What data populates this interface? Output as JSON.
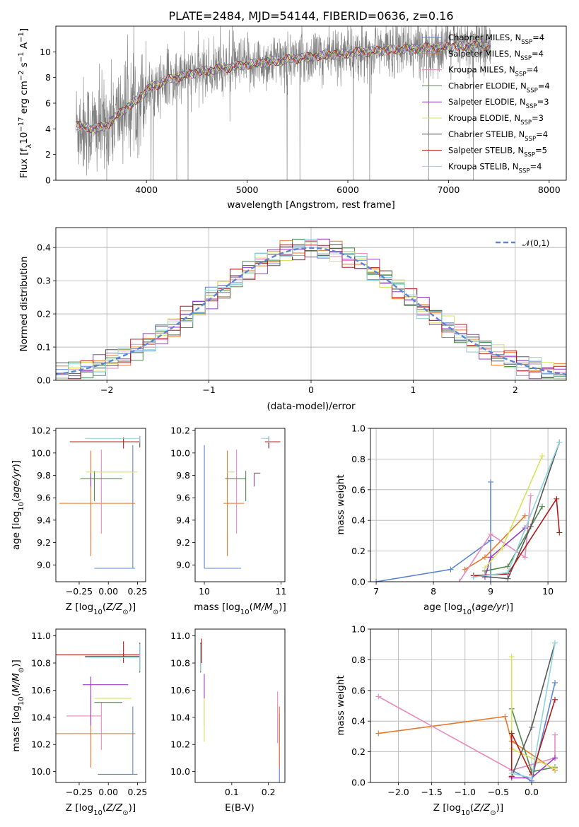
{
  "title": "PLATE=2484, MJD=54144, FIBERID=0636, z=0.16",
  "colors": {
    "ChabrierMILES": "#5b84d6",
    "SalpeterMILES": "#e7782a",
    "KroupaMILES": "#e98abf",
    "ChabrierELODIE": "#4f8a4f",
    "SalpeterELODIE": "#9b3bc4",
    "KroupaELODIE": "#d6e458",
    "ChabrierSTELIB": "#575757",
    "SalpeterSTELIB": "#b31b1b",
    "KroupaSTELIB": "#8fd6dc",
    "data": "#808080"
  },
  "chart_data": [
    {
      "id": "spectrum",
      "type": "line",
      "xlabel": "wavelength [Angstrom, rest frame]",
      "ylabel": "Flux [f_λ10^-17 erg cm^-2 s^-1 A^-1]",
      "xlim": [
        3100,
        8170
      ],
      "ylim": [
        0,
        12
      ],
      "xticks": [
        4000,
        5000,
        6000,
        7000,
        8000
      ],
      "yticks": [
        0,
        2,
        4,
        6,
        8,
        10
      ],
      "grid": false,
      "legend_position": "right",
      "legend": [
        {
          "key": "ChabrierMILES",
          "label": "Chabrier MILES, N",
          "sub": "SSP",
          "suffix": "=4"
        },
        {
          "key": "SalpeterMILES",
          "label": "Salpeter MILES, N",
          "sub": "SSP",
          "suffix": "=4"
        },
        {
          "key": "KroupaMILES",
          "label": "Kroupa MILES, N",
          "sub": "SSP",
          "suffix": "=4"
        },
        {
          "key": "ChabrierELODIE",
          "label": "Chabrier ELODIE, N",
          "sub": "SSP",
          "suffix": "=4"
        },
        {
          "key": "SalpeterELODIE",
          "label": "Salpeter ELODIE, N",
          "sub": "SSP",
          "suffix": "=3"
        },
        {
          "key": "KroupaELODIE",
          "label": "Kroupa ELODIE, N",
          "sub": "SSP",
          "suffix": "=3"
        },
        {
          "key": "ChabrierSTELIB",
          "label": "Chabrier STELIB, N",
          "sub": "SSP",
          "suffix": "=4"
        },
        {
          "key": "SalpeterSTELIB",
          "label": "Salpeter STELIB, N",
          "sub": "SSP",
          "suffix": "=5"
        },
        {
          "key": "KroupaSTELIB",
          "label": "Kroupa STELIB, N",
          "sub": "SSP",
          "suffix": "=4"
        }
      ],
      "model_trend": {
        "x": [
          3300,
          3500,
          3600,
          3700,
          3800,
          3900,
          4000,
          4200,
          4500,
          5000,
          5500,
          6000,
          6500,
          7000,
          7400
        ],
        "y": [
          4.3,
          4.0,
          4.2,
          5.0,
          5.6,
          6.2,
          7.0,
          7.8,
          8.4,
          9.0,
          9.5,
          9.9,
          10.2,
          10.4,
          10.5
        ]
      },
      "data_range": [
        3300,
        7420
      ]
    },
    {
      "id": "residual-hist",
      "type": "line",
      "xlabel": "(data-model)/error",
      "ylabel": "Normed distribution",
      "xlim": [
        -2.5,
        2.5
      ],
      "ylim": [
        0,
        0.46
      ],
      "xticks": [
        -2,
        -1,
        0,
        1,
        2
      ],
      "yticks": [
        0.0,
        0.1,
        0.2,
        0.3,
        0.4
      ],
      "grid": true,
      "legend_position": "top-right",
      "reference_curve": {
        "name": "𝒩(0,1)",
        "mean": 0,
        "sigma": 1
      },
      "bins": 41
    },
    {
      "id": "age-vs-Z",
      "type": "scatter",
      "xlabel": "Z [log10(Z/Z⊙)]",
      "ylabel": "age [log10(age/yr)]",
      "xlim": [
        -0.45,
        0.32
      ],
      "ylim": [
        8.85,
        10.22
      ],
      "xticks": [
        -0.25,
        0.0,
        0.25
      ],
      "yticks": [
        9.0,
        9.2,
        9.4,
        9.6,
        9.8,
        10.0,
        10.2
      ],
      "grid": false,
      "points": [
        {
          "key": "ChabrierMILES",
          "x": 0.21,
          "y": 8.97,
          "xerr": [
            0.33,
            0.02
          ],
          "yerr": [
            0.0,
            1.1
          ]
        },
        {
          "key": "SalpeterMILES",
          "x": -0.15,
          "y": 9.55,
          "xerr": [
            0.27,
            0.38
          ],
          "yerr": [
            0.47,
            0.47
          ]
        },
        {
          "key": "KroupaMILES",
          "x": -0.06,
          "y": 9.58,
          "xerr": [
            0.0,
            0.0
          ],
          "yerr": [
            0.3,
            0.45
          ]
        },
        {
          "key": "ChabrierELODIE",
          "x": -0.12,
          "y": 9.77,
          "xerr": [
            0.12,
            0.24
          ],
          "yerr": [
            0.2,
            0.07
          ]
        },
        {
          "key": "SalpeterELODIE",
          "x": -0.15,
          "y": 9.82,
          "xerr": [
            0.0,
            0.0
          ],
          "yerr": [
            0.12,
            0.0
          ]
        },
        {
          "key": "KroupaELODIE",
          "x": -0.15,
          "y": 9.83,
          "xerr": [
            0.04,
            0.4
          ],
          "yerr": [
            0.0,
            0.0
          ]
        },
        {
          "key": "ChabrierSTELIB",
          "x": 0.27,
          "y": 10.1,
          "xerr": [
            0.0,
            0.0
          ],
          "yerr": [
            0.05,
            0.05
          ]
        },
        {
          "key": "SalpeterSTELIB",
          "x": 0.13,
          "y": 10.1,
          "xerr": [
            0.46,
            0.14
          ],
          "yerr": [
            0.06,
            0.04
          ]
        },
        {
          "key": "KroupaSTELIB",
          "x": 0.27,
          "y": 10.13,
          "xerr": [
            0.47,
            0.0
          ],
          "yerr": [
            0.04,
            0.02
          ]
        }
      ]
    },
    {
      "id": "age-vs-mass",
      "type": "scatter",
      "xlabel": "mass [log10(M/M⊙)]",
      "ylabel": "",
      "xlim": [
        9.88,
        11.05
      ],
      "ylim": [
        8.85,
        10.22
      ],
      "xticks": [
        10,
        11
      ],
      "yticks": [
        9.0,
        9.2,
        9.4,
        9.6,
        9.8,
        10.0,
        10.2
      ],
      "grid": false,
      "points": [
        {
          "key": "ChabrierMILES",
          "x": 10.0,
          "y": 8.97,
          "xerr": [
            0.0,
            0.48
          ],
          "yerr": [
            0.0,
            1.1
          ]
        },
        {
          "key": "SalpeterMILES",
          "x": 10.3,
          "y": 9.55,
          "xerr": [
            0.05,
            0.22
          ],
          "yerr": [
            0.47,
            0.47
          ]
        },
        {
          "key": "KroupaMILES",
          "x": 10.42,
          "y": 9.58,
          "xerr": [
            0.0,
            0.0
          ],
          "yerr": [
            0.3,
            0.45
          ]
        },
        {
          "key": "ChabrierELODIE",
          "x": 10.54,
          "y": 9.77,
          "xerr": [
            0.27,
            0.0
          ],
          "yerr": [
            0.2,
            0.07
          ]
        },
        {
          "key": "SalpeterELODIE",
          "x": 10.65,
          "y": 9.82,
          "xerr": [
            0.0,
            0.08
          ],
          "yerr": [
            0.12,
            0.0
          ]
        },
        {
          "key": "KroupaELODIE",
          "x": 10.4,
          "y": 9.83,
          "xerr": [
            0.1,
            0.0
          ],
          "yerr": [
            0.0,
            0.0
          ]
        },
        {
          "key": "ChabrierSTELIB",
          "x": 10.84,
          "y": 10.1,
          "xerr": [
            0.0,
            0.0
          ],
          "yerr": [
            0.05,
            0.05
          ]
        },
        {
          "key": "SalpeterSTELIB",
          "x": 10.84,
          "y": 10.1,
          "xerr": [
            0.05,
            0.15
          ],
          "yerr": [
            0.06,
            0.04
          ]
        },
        {
          "key": "KroupaSTELIB",
          "x": 10.84,
          "y": 10.13,
          "xerr": [
            0.1,
            0.0
          ],
          "yerr": [
            0.04,
            0.02
          ]
        }
      ]
    },
    {
      "id": "massweight-vs-age",
      "type": "line",
      "xlabel": "age [log10(age/yr)]",
      "ylabel": "mass weight",
      "xlim": [
        6.9,
        10.32
      ],
      "ylim": [
        0,
        1
      ],
      "xticks": [
        7,
        8,
        9,
        10
      ],
      "yticks": [
        0.0,
        0.2,
        0.4,
        0.6,
        0.8,
        1.0
      ],
      "grid": true,
      "series": [
        {
          "key": "ChabrierMILES",
          "x": [
            7.0,
            8.3,
            9.0,
            9.0,
            9.0
          ],
          "y": [
            0.0,
            0.08,
            0.27,
            0.65,
            0.0
          ]
        },
        {
          "key": "SalpeterMILES",
          "x": [
            8.55,
            8.9,
            9.6
          ],
          "y": [
            0.08,
            0.16,
            0.43
          ]
        },
        {
          "key": "KroupaMILES",
          "x": [
            8.45,
            9.0,
            9.6,
            9.7
          ],
          "y": [
            0.0,
            0.31,
            0.16,
            0.56
          ]
        },
        {
          "key": "ChabrierELODIE",
          "x": [
            8.9,
            9.3,
            9.9
          ],
          "y": [
            0.07,
            0.1,
            0.49
          ]
        },
        {
          "key": "SalpeterELODIE",
          "x": [
            8.9,
            9.0,
            9.6
          ],
          "y": [
            0.03,
            0.16,
            0.35
          ]
        },
        {
          "key": "KroupaELODIE",
          "x": [
            8.9,
            9.2,
            9.9
          ],
          "y": [
            0.09,
            0.22,
            0.82
          ]
        },
        {
          "key": "ChabrierSTELIB",
          "x": [
            8.7,
            9.3,
            9.7,
            10.2
          ],
          "y": [
            0.04,
            0.02,
            0.36,
            0.91
          ]
        },
        {
          "key": "SalpeterSTELIB",
          "x": [
            8.7,
            9.3,
            10.15,
            10.2
          ],
          "y": [
            0.04,
            0.05,
            0.54,
            0.32
          ]
        },
        {
          "key": "KroupaSTELIB",
          "x": [
            8.7,
            9.3,
            10.2
          ],
          "y": [
            0.03,
            0.06,
            0.91
          ]
        }
      ]
    },
    {
      "id": "mass-vs-Z",
      "type": "scatter",
      "xlabel": "Z [log10(Z/Z⊙)]",
      "ylabel": "mass [log10(M/M⊙)]",
      "xlim": [
        -0.45,
        0.32
      ],
      "ylim": [
        9.92,
        11.05
      ],
      "xticks": [
        -0.25,
        0.0,
        0.25
      ],
      "yticks": [
        10.0,
        10.2,
        10.4,
        10.6,
        10.8,
        11.0
      ],
      "grid": false,
      "points": [
        {
          "key": "ChabrierMILES",
          "x": 0.21,
          "y": 9.98,
          "xerr": [
            0.3,
            0.04
          ],
          "yerr": [
            0.0,
            0.5
          ]
        },
        {
          "key": "SalpeterMILES",
          "x": -0.15,
          "y": 10.28,
          "xerr": [
            0.3,
            0.38
          ],
          "yerr": [
            0.25,
            0.28
          ]
        },
        {
          "key": "KroupaMILES",
          "x": -0.06,
          "y": 10.41,
          "xerr": [
            0.3,
            0.0
          ],
          "yerr": [
            0.25,
            0.1
          ]
        },
        {
          "key": "ChabrierELODIE",
          "x": -0.12,
          "y": 10.51,
          "xerr": [
            0.0,
            0.24
          ],
          "yerr": [
            0.0,
            0.0
          ]
        },
        {
          "key": "SalpeterELODIE",
          "x": -0.15,
          "y": 10.64,
          "xerr": [
            0.07,
            0.32
          ],
          "yerr": [
            0.3,
            0.06
          ]
        },
        {
          "key": "KroupaELODIE",
          "x": -0.12,
          "y": 10.54,
          "xerr": [
            0.0,
            0.32
          ],
          "yerr": [
            0.0,
            0.0
          ]
        },
        {
          "key": "ChabrierSTELIB",
          "x": 0.27,
          "y": 10.85,
          "xerr": [
            0.47,
            0.0
          ],
          "yerr": [
            0.12,
            0.1
          ]
        },
        {
          "key": "SalpeterSTELIB",
          "x": 0.13,
          "y": 10.86,
          "xerr": [
            0.6,
            0.14
          ],
          "yerr": [
            0.06,
            0.1
          ]
        },
        {
          "key": "KroupaSTELIB",
          "x": 0.27,
          "y": 10.84,
          "xerr": [
            0.47,
            0.0
          ],
          "yerr": [
            0.1,
            0.1
          ]
        }
      ]
    },
    {
      "id": "mass-vs-EBV",
      "type": "scatter",
      "xlabel": "E(B-V)",
      "ylabel": "",
      "xlim": [
        0.0,
        0.245
      ],
      "ylim": [
        9.92,
        11.05
      ],
      "xticks": [
        0.1,
        0.2
      ],
      "yticks": [
        10.0,
        10.2,
        10.4,
        10.6,
        10.8,
        11.0
      ],
      "grid": false,
      "points": [
        {
          "key": "ChabrierMILES",
          "x": 0.23,
          "y": 9.98,
          "xerr": [
            0.0,
            0.0
          ],
          "yerr": [
            0.08,
            0.45
          ]
        },
        {
          "key": "SalpeterMILES",
          "x": 0.23,
          "y": 10.28,
          "xerr": [
            0.0,
            0.0
          ],
          "yerr": [
            0.25,
            0.2
          ]
        },
        {
          "key": "KroupaMILES",
          "x": 0.225,
          "y": 10.41,
          "xerr": [
            0.0,
            0.0
          ],
          "yerr": [
            0.2,
            0.18
          ]
        },
        {
          "key": "ChabrierELODIE",
          "x": 0.02,
          "y": 10.51,
          "xerr": [
            0.0,
            0.0
          ],
          "yerr": [
            0.0,
            0.0
          ]
        },
        {
          "key": "SalpeterELODIE",
          "x": 0.025,
          "y": 10.64,
          "xerr": [
            0.0,
            0.0
          ],
          "yerr": [
            0.3,
            0.08
          ]
        },
        {
          "key": "KroupaELODIE",
          "x": 0.025,
          "y": 10.54,
          "xerr": [
            0.0,
            0.0
          ],
          "yerr": [
            0.32,
            0.0
          ]
        },
        {
          "key": "ChabrierSTELIB",
          "x": 0.015,
          "y": 10.85,
          "xerr": [
            0.0,
            0.0
          ],
          "yerr": [
            0.12,
            0.1
          ]
        },
        {
          "key": "SalpeterSTELIB",
          "x": 0.018,
          "y": 10.86,
          "xerr": [
            0.0,
            0.0
          ],
          "yerr": [
            0.06,
            0.12
          ]
        },
        {
          "key": "KroupaSTELIB",
          "x": 0.015,
          "y": 10.84,
          "xerr": [
            0.0,
            0.0
          ],
          "yerr": [
            0.1,
            0.1
          ]
        }
      ]
    },
    {
      "id": "massweight-vs-Z",
      "type": "line",
      "xlabel": "Z [log10(Z/Z⊙)]",
      "ylabel": "mass weight",
      "xlim": [
        -2.42,
        0.52
      ],
      "ylim": [
        0,
        1
      ],
      "xticks": [
        -2.0,
        -1.5,
        -1.0,
        -0.5,
        0.0
      ],
      "yticks": [
        0.0,
        0.2,
        0.4,
        0.6,
        0.8,
        1.0
      ],
      "grid": true,
      "series": [
        {
          "key": "ChabrierMILES",
          "x": [
            -0.3,
            0.0,
            0.35
          ],
          "y": [
            0.08,
            0.01,
            0.65
          ]
        },
        {
          "key": "SalpeterMILES",
          "x": [
            -2.3,
            -0.4,
            -0.3,
            0.35
          ],
          "y": [
            0.32,
            0.43,
            0.27,
            0.08
          ]
        },
        {
          "key": "KroupaMILES",
          "x": [
            -2.3,
            -0.3,
            0.35,
            0.35
          ],
          "y": [
            0.56,
            0.08,
            0.16,
            0.31
          ]
        },
        {
          "key": "ChabrierELODIE",
          "x": [
            -0.3,
            0.0,
            0.35
          ],
          "y": [
            0.48,
            0.07,
            0.1
          ]
        },
        {
          "key": "SalpeterELODIE",
          "x": [
            -0.3,
            0.0,
            0.35
          ],
          "y": [
            0.03,
            0.03,
            0.16
          ]
        },
        {
          "key": "KroupaELODIE",
          "x": [
            -0.3,
            -0.3,
            0.35
          ],
          "y": [
            0.82,
            0.22,
            0.09
          ]
        },
        {
          "key": "ChabrierSTELIB",
          "x": [
            -0.3,
            0.0,
            0.35
          ],
          "y": [
            0.04,
            0.36,
            0.91
          ]
        },
        {
          "key": "SalpeterSTELIB",
          "x": [
            -0.3,
            -0.3,
            0.0,
            0.35
          ],
          "y": [
            0.04,
            0.32,
            0.05,
            0.54
          ]
        },
        {
          "key": "KroupaSTELIB",
          "x": [
            -0.3,
            0.0,
            0.35
          ],
          "y": [
            0.06,
            0.03,
            0.91
          ]
        }
      ]
    }
  ]
}
